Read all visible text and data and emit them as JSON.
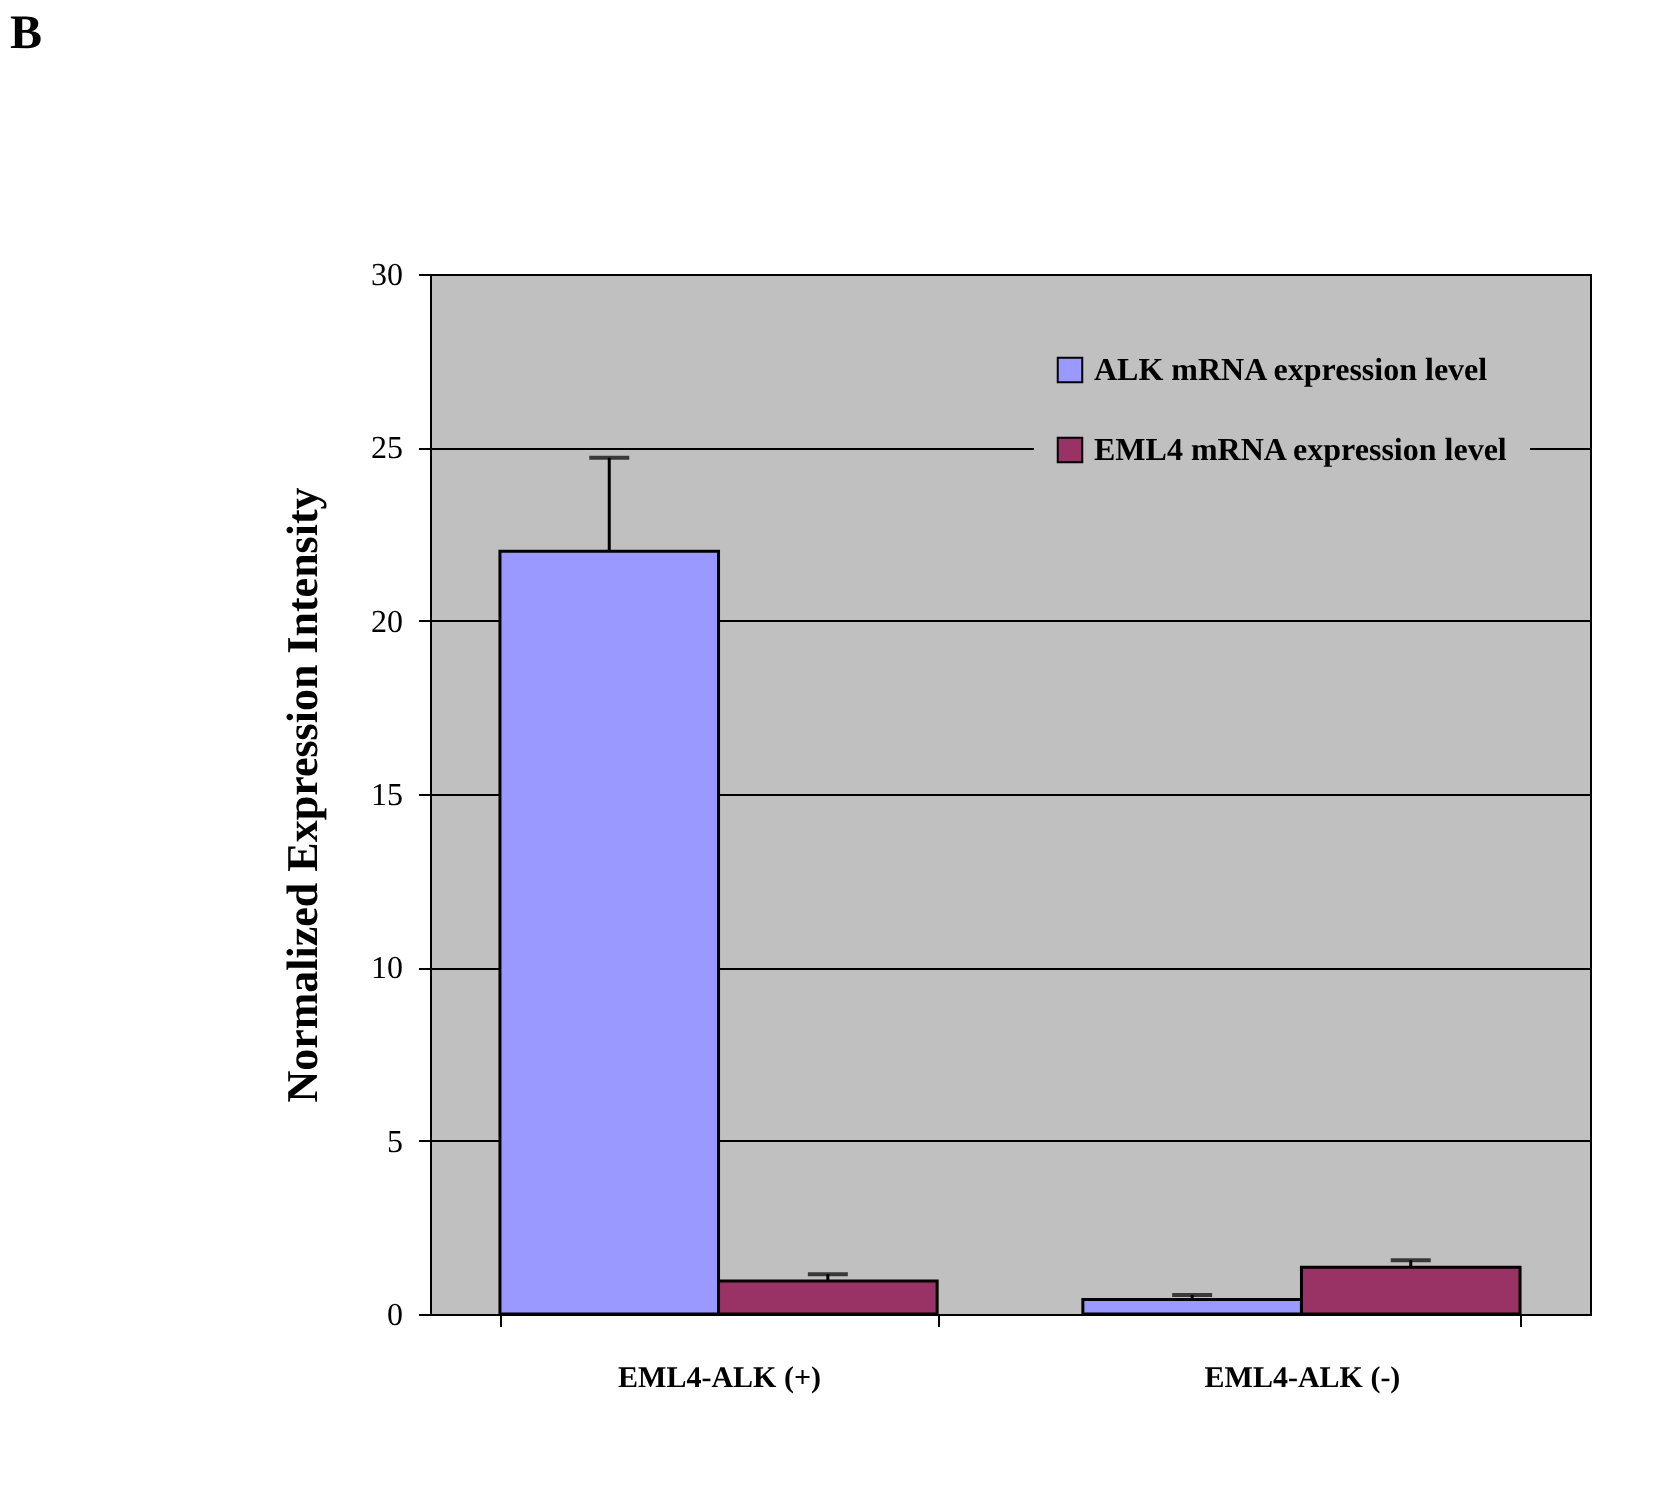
{
  "chart_data": {
    "type": "bar",
    "ylabel": "Normalized Expression Intensity",
    "categories": [
      "EML4-ALK (+)",
      "EML4-ALK (-)"
    ],
    "series": [
      {
        "name": "ALK mRNA expression level",
        "color": "#9999ff",
        "values": [
          22.0,
          0.42
        ],
        "errors": [
          2.7,
          0.13
        ]
      },
      {
        "name": "EML4 mRNA expression level",
        "color": "#993366",
        "values": [
          0.95,
          1.35
        ],
        "errors": [
          0.2,
          0.2
        ]
      }
    ],
    "ylim": [
      0,
      30
    ],
    "yticks": [
      0,
      5,
      10,
      15,
      20,
      25,
      30
    ],
    "grid": "y",
    "legend": "top right",
    "annotations": [
      "B"
    ]
  }
}
